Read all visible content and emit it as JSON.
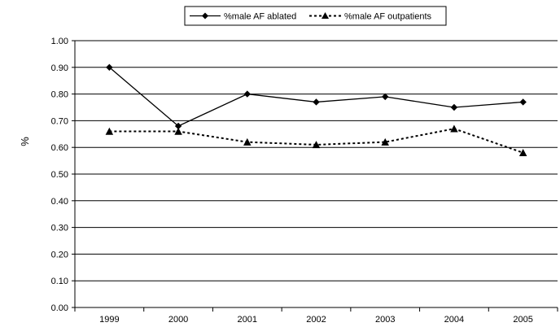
{
  "chart_data": {
    "type": "line",
    "title": "",
    "xlabel": "",
    "ylabel": "%",
    "categories": [
      "1999",
      "2000",
      "2001",
      "2002",
      "2003",
      "2004",
      "2005"
    ],
    "ylim": [
      0,
      1
    ],
    "yticks": [
      "0.00",
      "0.10",
      "0.20",
      "0.30",
      "0.40",
      "0.50",
      "0.60",
      "0.70",
      "0.80",
      "0.90",
      "1.00"
    ],
    "grid": "horizontal",
    "legend_position": "top",
    "series": [
      {
        "name": "%male AF ablated",
        "values": [
          0.9,
          0.68,
          0.8,
          0.77,
          0.79,
          0.75,
          0.77
        ],
        "color": "#000000",
        "line_style": "solid",
        "marker": "diamond"
      },
      {
        "name": "%male AF outpatients",
        "values": [
          0.66,
          0.66,
          0.62,
          0.61,
          0.62,
          0.67,
          0.58
        ],
        "color": "#000000",
        "line_style": "dashed",
        "marker": "triangle"
      }
    ]
  }
}
